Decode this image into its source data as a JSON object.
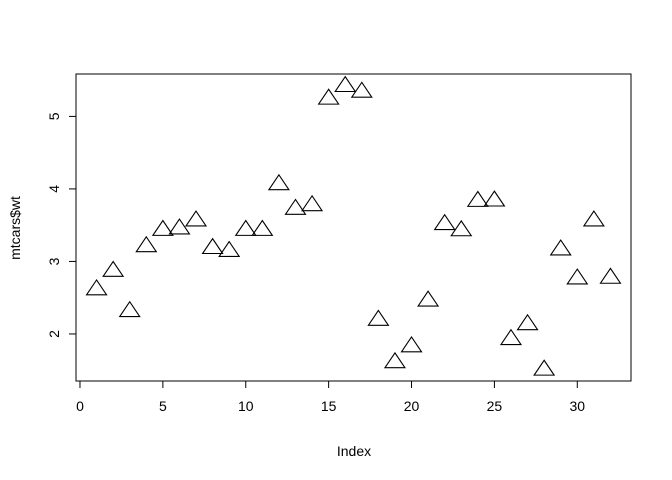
{
  "chart_data": {
    "type": "scatter",
    "title": "",
    "xlabel": "Index",
    "ylabel": "mtcars$wt",
    "xlim": [
      -0.24,
      33.24
    ],
    "ylim": [
      1.3514,
      5.5846
    ],
    "x_ticks": [
      0,
      5,
      10,
      15,
      20,
      25,
      30
    ],
    "x_tick_labels": [
      "0",
      "5",
      "10",
      "15",
      "20",
      "25",
      "30"
    ],
    "y_ticks": [
      2,
      3,
      4,
      5
    ],
    "y_tick_labels": [
      "2",
      "3",
      "4",
      "5"
    ],
    "marker": "open-triangle",
    "grid": false,
    "legend": "none",
    "series": [
      {
        "x": [
          1,
          2,
          3,
          4,
          5,
          6,
          7,
          8,
          9,
          10,
          11,
          12,
          13,
          14,
          15,
          16,
          17,
          18,
          19,
          20,
          21,
          22,
          23,
          24,
          25,
          26,
          27,
          28,
          29,
          30,
          31,
          32
        ],
        "y": [
          2.62,
          2.875,
          2.32,
          3.215,
          3.44,
          3.46,
          3.57,
          3.19,
          3.15,
          3.44,
          3.44,
          4.07,
          3.73,
          3.78,
          5.25,
          5.424,
          5.345,
          2.2,
          1.615,
          1.835,
          2.465,
          3.52,
          3.435,
          3.84,
          3.845,
          1.935,
          2.14,
          1.513,
          3.17,
          2.77,
          3.57,
          2.78
        ]
      }
    ]
  },
  "colors": {
    "marker_stroke": "#000000",
    "axis": "#000000",
    "background": "#ffffff"
  }
}
